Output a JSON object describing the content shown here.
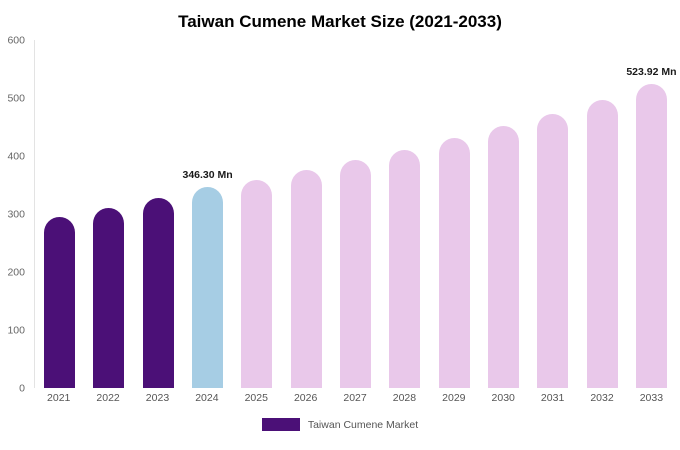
{
  "title": "Taiwan Cumene Market Size (2021-2033)",
  "legend": {
    "label": "Taiwan Cumene Market",
    "color": "#4b1077"
  },
  "colors": {
    "historical": "#4b1077",
    "current": "#a6cde4",
    "forecast": "#e9c8ea"
  },
  "chart_data": {
    "type": "bar",
    "title": "Taiwan Cumene Market Size (2021-2033)",
    "xlabel": "",
    "ylabel": "",
    "ylim": [
      0,
      600
    ],
    "yticks": [
      0,
      100,
      200,
      300,
      400,
      500,
      600
    ],
    "grid": false,
    "legend_position": "bottom",
    "categories": [
      "2021",
      "2022",
      "2023",
      "2024",
      "2025",
      "2026",
      "2027",
      "2028",
      "2029",
      "2030",
      "2031",
      "2032",
      "2033"
    ],
    "bars": [
      {
        "year": "2021",
        "value": 295,
        "color": "historical",
        "label": ""
      },
      {
        "year": "2022",
        "value": 311,
        "color": "historical",
        "label": ""
      },
      {
        "year": "2023",
        "value": 327,
        "color": "historical",
        "label": ""
      },
      {
        "year": "2024",
        "value": 346.3,
        "color": "current",
        "label": "346.30 Mn"
      },
      {
        "year": "2025",
        "value": 359,
        "color": "forecast",
        "label": ""
      },
      {
        "year": "2026",
        "value": 376,
        "color": "forecast",
        "label": ""
      },
      {
        "year": "2027",
        "value": 393,
        "color": "forecast",
        "label": ""
      },
      {
        "year": "2028",
        "value": 411,
        "color": "forecast",
        "label": ""
      },
      {
        "year": "2029",
        "value": 431,
        "color": "forecast",
        "label": ""
      },
      {
        "year": "2030",
        "value": 452,
        "color": "forecast",
        "label": ""
      },
      {
        "year": "2031",
        "value": 473,
        "color": "forecast",
        "label": ""
      },
      {
        "year": "2032",
        "value": 497,
        "color": "forecast",
        "label": ""
      },
      {
        "year": "2033",
        "value": 523.92,
        "color": "forecast",
        "label": "523.92 Mn"
      }
    ]
  }
}
